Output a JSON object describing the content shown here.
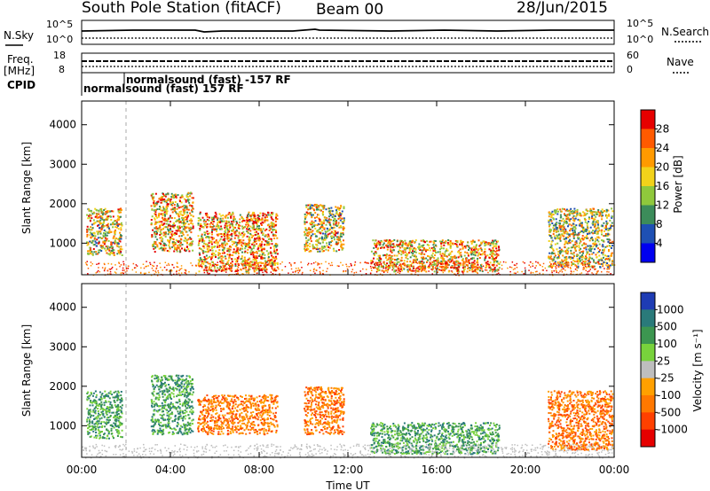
{
  "header": {
    "station": "South Pole Station (fitACF)",
    "beam": "Beam 00",
    "date": "28/Jun/2015"
  },
  "top_panels": {
    "nsky_label": "N.Sky",
    "nsky_ticks": [
      "10^5",
      "10^0"
    ],
    "nsearch_label": "N.Search",
    "nsearch_ticks": [
      "10^5",
      "10^0"
    ],
    "freq_label": "Freq.",
    "freq_unit": "[MHz]",
    "freq_ticks": [
      "18",
      "8"
    ],
    "nave_label": "Nave",
    "nave_ticks": [
      "60",
      "0"
    ],
    "cpid_label": "CPID",
    "cpid_entries": [
      "normalsound (fast) -157 RF",
      "normalsound (fast) 157 RF"
    ]
  },
  "colorbar_power": {
    "label": "Power [dB]",
    "ticks": [
      "28",
      "24",
      "20",
      "16",
      "12",
      "8",
      "4"
    ],
    "colors": [
      "#e60000",
      "#ff5a00",
      "#ff9a00",
      "#f2d21a",
      "#8fc83c",
      "#3c8c5a",
      "#1e50b4",
      "#0000f0"
    ]
  },
  "colorbar_velocity": {
    "label": "Velocity [m s⁻¹]",
    "ticks": [
      "1000",
      "500",
      "100",
      "25",
      "-25",
      "-100",
      "-500",
      "-1000"
    ],
    "colors": [
      "#1e3cb4",
      "#2a7a7a",
      "#3c9650",
      "#78d23c",
      "#bebebe",
      "#ffa000",
      "#ff7800",
      "#ff4000",
      "#e60000"
    ]
  },
  "chart_data": [
    {
      "type": "heatmap",
      "title": "",
      "xlabel": "Time UT",
      "ylabel": "Slant Range [km]",
      "x_ticks": [
        "00:00",
        "04:00",
        "08:00",
        "12:00",
        "16:00",
        "20:00",
        "00:00"
      ],
      "y_ticks": [
        1000,
        2000,
        3000,
        4000
      ],
      "xlim_hours": [
        0,
        24
      ],
      "ylim_km": [
        200,
        4600
      ],
      "colorbar": "Power [dB]",
      "scatter_regions": [
        {
          "t_start": 0.2,
          "t_end": 1.8,
          "r_low": 700,
          "r_high": 1900,
          "value_db": 16
        },
        {
          "t_start": 3.1,
          "t_end": 5.0,
          "r_low": 800,
          "r_high": 2300,
          "value_db": 18
        },
        {
          "t_start": 5.2,
          "t_end": 8.8,
          "r_low": 300,
          "r_high": 1800,
          "value_db": 20
        },
        {
          "t_start": 10.0,
          "t_end": 11.8,
          "r_low": 800,
          "r_high": 2000,
          "value_db": 16
        },
        {
          "t_start": 13.0,
          "t_end": 18.8,
          "r_low": 300,
          "r_high": 1100,
          "value_db": 18
        },
        {
          "t_start": 21.0,
          "t_end": 23.9,
          "r_low": 400,
          "r_high": 1900,
          "value_db": 14
        }
      ]
    },
    {
      "type": "heatmap",
      "title": "",
      "xlabel": "Time UT",
      "ylabel": "Slant Range [km]",
      "x_ticks": [
        "00:00",
        "04:00",
        "08:00",
        "12:00",
        "16:00",
        "20:00",
        "00:00"
      ],
      "y_ticks": [
        1000,
        2000,
        3000,
        4000
      ],
      "xlim_hours": [
        0,
        24
      ],
      "ylim_km": [
        200,
        4600
      ],
      "colorbar": "Velocity [m s⁻¹]",
      "scatter_regions": [
        {
          "t_start": 0.2,
          "t_end": 1.8,
          "r_low": 700,
          "r_high": 1900,
          "value_ms": 100
        },
        {
          "t_start": 3.1,
          "t_end": 5.0,
          "r_low": 800,
          "r_high": 2300,
          "value_ms": 120
        },
        {
          "t_start": 5.2,
          "t_end": 8.8,
          "r_low": 800,
          "r_high": 1800,
          "value_ms": -150
        },
        {
          "t_start": 10.0,
          "t_end": 11.8,
          "r_low": 800,
          "r_high": 2000,
          "value_ms": -150
        },
        {
          "t_start": 13.0,
          "t_end": 18.8,
          "r_low": 300,
          "r_high": 1100,
          "value_ms": 200
        },
        {
          "t_start": 21.0,
          "t_end": 23.9,
          "r_low": 400,
          "r_high": 1900,
          "value_ms": -80
        }
      ]
    }
  ]
}
